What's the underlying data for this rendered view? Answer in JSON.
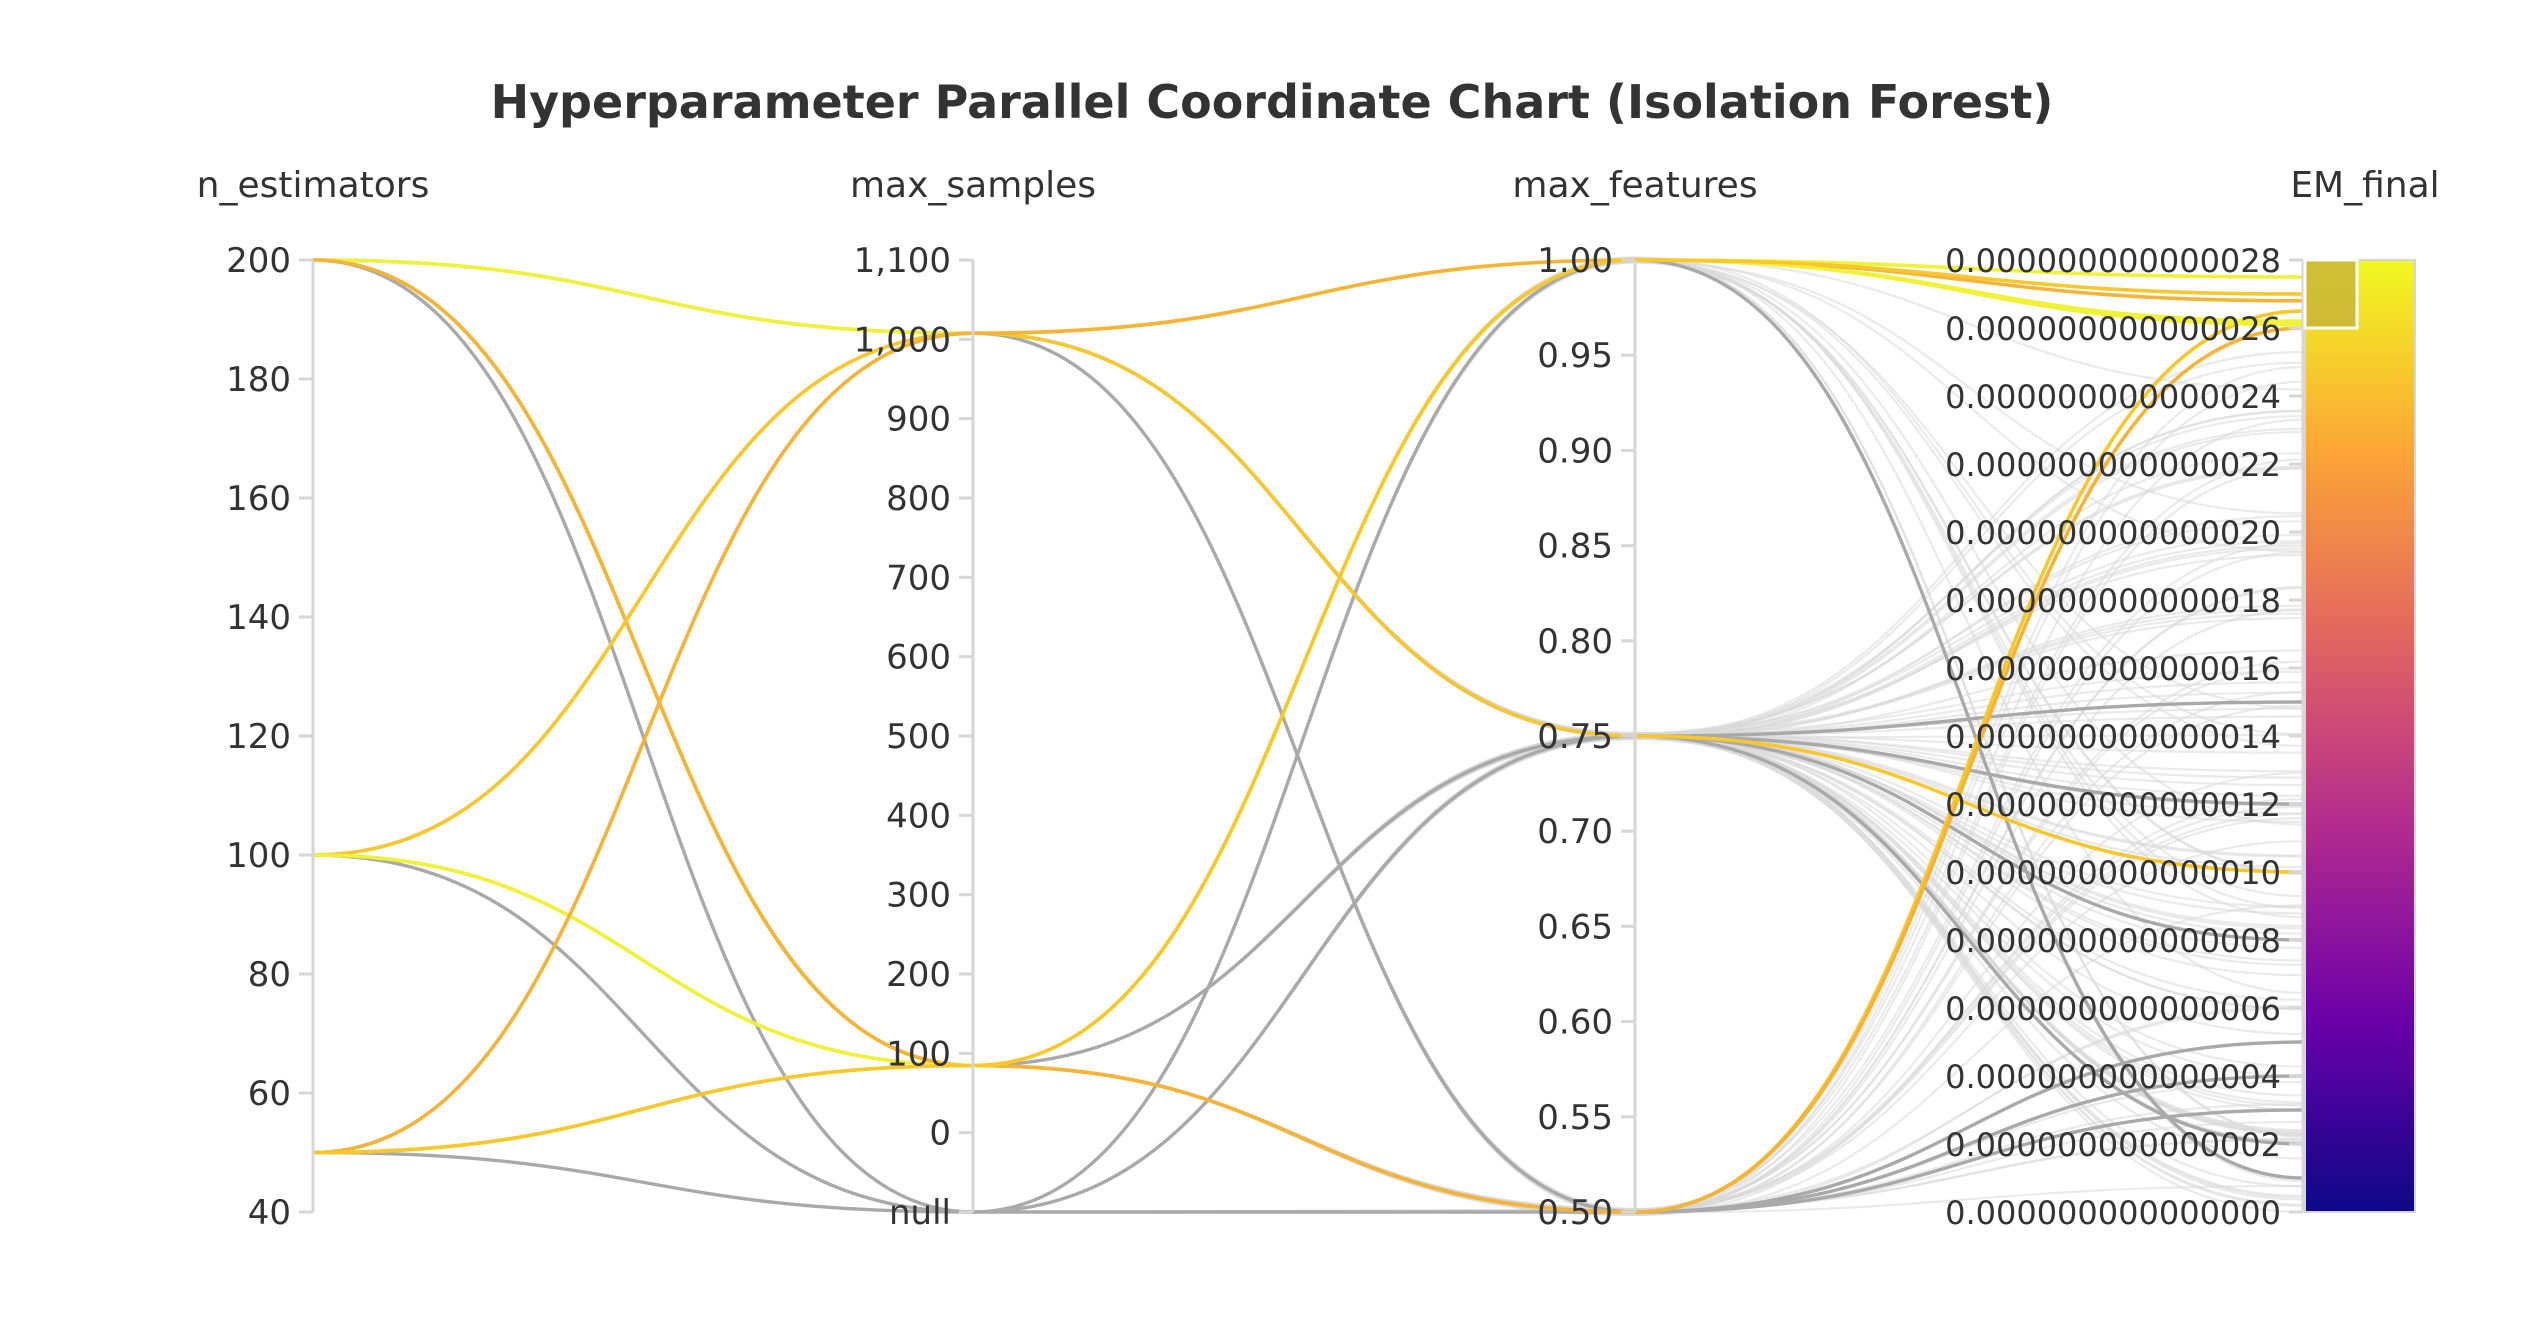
{
  "chart_data": {
    "type": "parallel-coordinates",
    "title": "Hyperparameter Parallel Coordinate Chart (Isolation Forest)",
    "dimensions": [
      {
        "name": "n_estimators",
        "range": [
          40,
          200
        ],
        "ticks": [
          "40",
          "60",
          "80",
          "100",
          "120",
          "140",
          "160",
          "180",
          "200"
        ]
      },
      {
        "name": "max_samples",
        "range": [
          -200,
          1100
        ],
        "ticks": [
          "null",
          "0",
          "100",
          "200",
          "300",
          "400",
          "500",
          "600",
          "700",
          "800",
          "900",
          "1,000",
          "1,100"
        ]
      },
      {
        "name": "max_features",
        "range": [
          0.5,
          1.0
        ],
        "ticks": [
          "0.50",
          "0.55",
          "0.60",
          "0.65",
          "0.70",
          "0.75",
          "0.80",
          "0.85",
          "0.90",
          "0.95",
          "1.00"
        ]
      },
      {
        "name": "EM_final",
        "range": [
          0,
          2.8e-14
        ],
        "ticks": [
          "0.000000000000000",
          "0.000000000000002",
          "0.000000000000004",
          "0.000000000000006",
          "0.000000000000008",
          "0.000000000000010",
          "0.000000000000012",
          "0.000000000000014",
          "0.000000000000016",
          "0.000000000000018",
          "0.000000000000020",
          "0.000000000000022",
          "0.000000000000024",
          "0.000000000000026",
          "0.000000000000028"
        ]
      }
    ],
    "colorscale": {
      "name": "Plasma",
      "range": [
        0,
        2.8e-14
      ],
      "colors": [
        "#0d0887",
        "#6a00a8",
        "#b12a90",
        "#e16462",
        "#fca636",
        "#f0f921"
      ],
      "selection_range": [
        2.6e-14,
        2.8e-14
      ]
    },
    "line_colors": {
      "gray": "#a9a9a9",
      "light_gray": "#d9d9d9",
      "yellow": "#f0f238",
      "gold": "#f7c72e",
      "orange": "#f4b43a"
    },
    "lines": [
      {
        "n_estimators": 200,
        "max_samples": 1000,
        "max_features": 0.75,
        "EM_final": 2e-15,
        "color": "gray"
      },
      {
        "n_estimators": 200,
        "max_samples": 0,
        "max_features": 0.5,
        "EM_final": 5e-15,
        "color": "gray"
      },
      {
        "n_estimators": 200,
        "max_samples": -200,
        "max_features": 1.0,
        "EM_final": 1e-15,
        "color": "gray"
      },
      {
        "n_estimators": 200,
        "max_samples": 1000,
        "max_features": 1.0,
        "EM_final": 2.75e-14,
        "color": "yellow"
      },
      {
        "n_estimators": 200,
        "max_samples": 0,
        "max_features": 0.5,
        "EM_final": 2.65e-14,
        "color": "gold"
      },
      {
        "n_estimators": 200,
        "max_samples": 0,
        "max_features": 0.5,
        "EM_final": 2.6e-14,
        "color": "orange"
      },
      {
        "n_estimators": 100,
        "max_samples": 1000,
        "max_features": 0.5,
        "EM_final": 3e-15,
        "color": "gray"
      },
      {
        "n_estimators": 100,
        "max_samples": 0,
        "max_features": 0.75,
        "EM_final": 8e-15,
        "color": "gray"
      },
      {
        "n_estimators": 100,
        "max_samples": -200,
        "max_features": 0.75,
        "EM_final": 1.2e-14,
        "color": "gray"
      },
      {
        "n_estimators": 100,
        "max_samples": 1000,
        "max_features": 0.75,
        "EM_final": 1e-14,
        "color": "gold"
      },
      {
        "n_estimators": 100,
        "max_samples": 0,
        "max_features": 1.0,
        "EM_final": 2.62e-14,
        "color": "yellow"
      },
      {
        "n_estimators": 50,
        "max_samples": 1000,
        "max_features": 0.75,
        "EM_final": 1.5e-14,
        "color": "gray"
      },
      {
        "n_estimators": 50,
        "max_samples": -200,
        "max_features": 0.5,
        "EM_final": 4e-15,
        "color": "gray"
      },
      {
        "n_estimators": 50,
        "max_samples": 1000,
        "max_features": 1.0,
        "EM_final": 2.68e-14,
        "color": "orange"
      },
      {
        "n_estimators": 50,
        "max_samples": 0,
        "max_features": 1.0,
        "EM_final": 2.61e-14,
        "color": "yellow"
      },
      {
        "n_estimators": 50,
        "max_samples": 0,
        "max_features": 1.0,
        "EM_final": 2.7e-14,
        "color": "gold"
      }
    ]
  }
}
